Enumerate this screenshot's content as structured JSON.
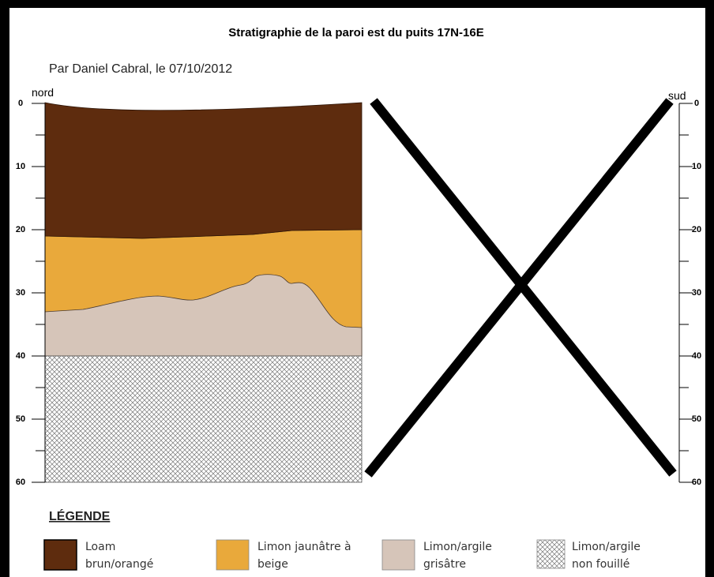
{
  "header": {
    "title": "Stratigraphie de la paroi est du puits 17N-16E",
    "subtitle": "Par Daniel Cabral, le 07/10/2012"
  },
  "profile": {
    "left_label": "nord",
    "right_label": "sud",
    "depth_ticks": [
      0,
      10,
      20,
      30,
      40,
      50,
      60
    ]
  },
  "legend": {
    "title": "LÉGENDE",
    "items": [
      {
        "lines": [
          "Loam",
          "brun/orangé"
        ]
      },
      {
        "lines": [
          "Limon jaunâtre à",
          "beige"
        ]
      },
      {
        "lines": [
          "Limon/argile",
          "grisâtre"
        ]
      },
      {
        "lines": [
          "Limon/argile",
          "non fouillé"
        ]
      }
    ]
  }
}
